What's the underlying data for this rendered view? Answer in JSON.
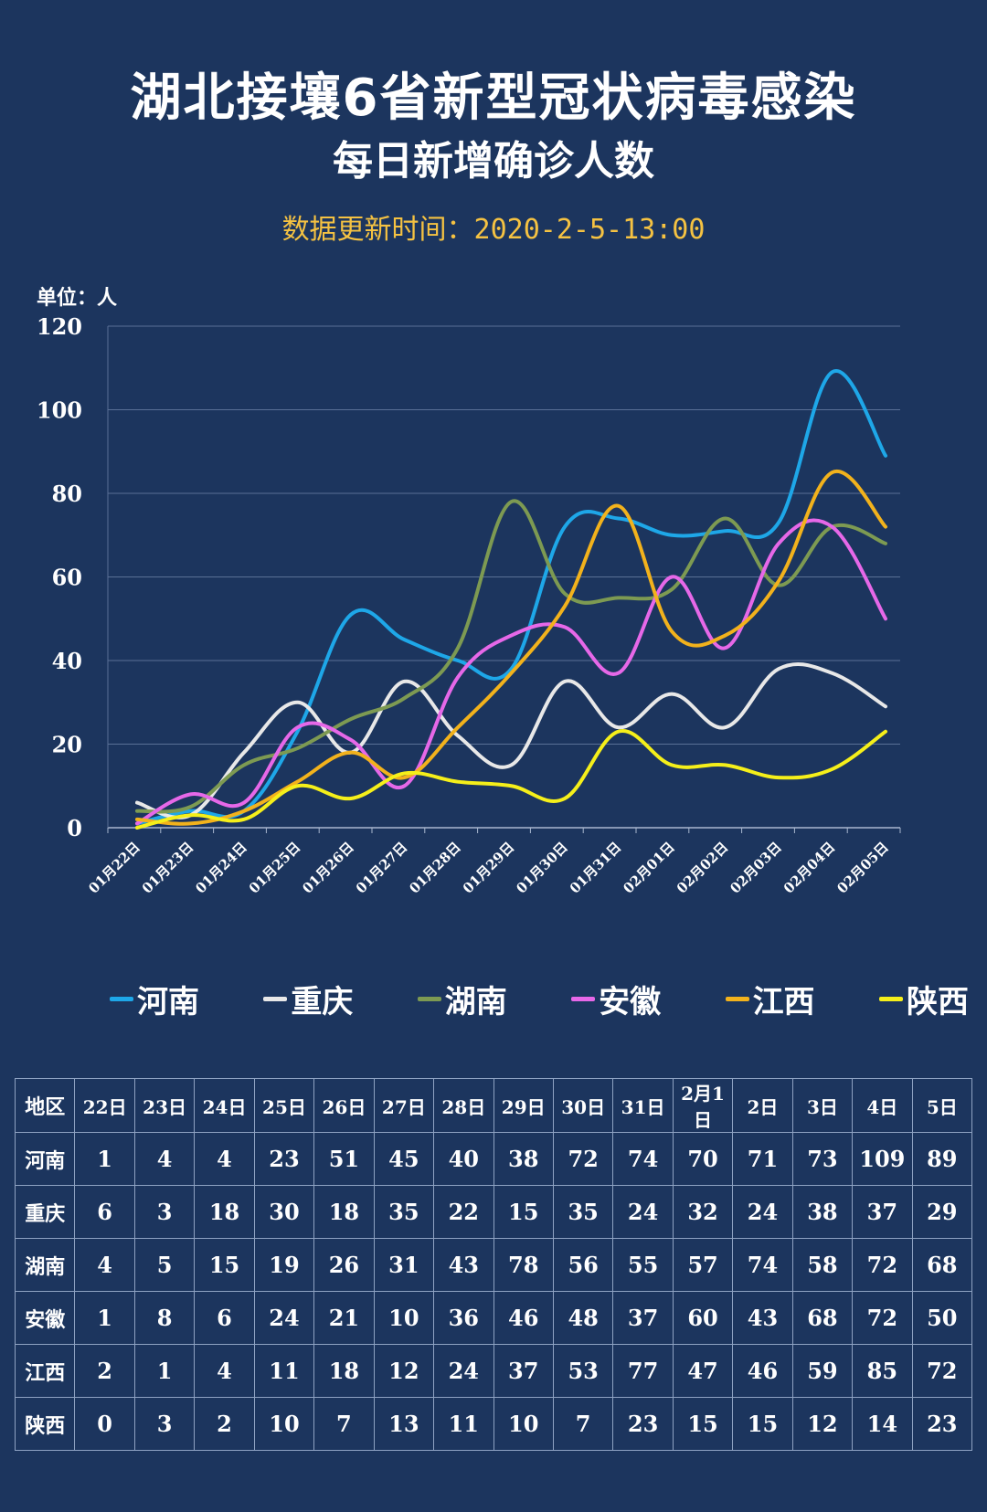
{
  "title": "湖北接壤6省新型冠状病毒感染",
  "subtitle": "每日新增确诊人数",
  "update_time": "数据更新时间：2020-2-5-13:00",
  "unit_label": "单位：人",
  "chart_data": {
    "type": "line",
    "title": "湖北接壤6省新型冠状病毒感染 每日新增确诊人数",
    "ylabel": "单位：人",
    "ylim": [
      0,
      120
    ],
    "yticks": [
      0,
      20,
      40,
      60,
      80,
      100,
      120
    ],
    "grid": true,
    "legend_position": "bottom",
    "categories": [
      "01月22日",
      "01月23日",
      "01月24日",
      "01月25日",
      "01月26日",
      "01月27日",
      "01月28日",
      "01月29日",
      "01月30日",
      "01月31日",
      "02月01日",
      "02月02日",
      "02月03日",
      "02月04日",
      "02月05日"
    ],
    "series": [
      {
        "name": "河南",
        "color": "#1ea7e8",
        "values": [
          1,
          4,
          4,
          23,
          51,
          45,
          40,
          38,
          72,
          74,
          70,
          71,
          73,
          109,
          89
        ]
      },
      {
        "name": "重庆",
        "color": "#e8e8e8",
        "values": [
          6,
          3,
          18,
          30,
          18,
          35,
          22,
          15,
          35,
          24,
          32,
          24,
          38,
          37,
          29
        ]
      },
      {
        "name": "湖南",
        "color": "#7d9a52",
        "values": [
          4,
          5,
          15,
          19,
          26,
          31,
          43,
          78,
          56,
          55,
          57,
          74,
          58,
          72,
          68
        ]
      },
      {
        "name": "安徽",
        "color": "#e668e8",
        "values": [
          1,
          8,
          6,
          24,
          21,
          10,
          36,
          46,
          48,
          37,
          60,
          43,
          68,
          72,
          50
        ]
      },
      {
        "name": "江西",
        "color": "#f2b21c",
        "values": [
          2,
          1,
          4,
          11,
          18,
          12,
          24,
          37,
          53,
          77,
          47,
          46,
          59,
          85,
          72
        ]
      },
      {
        "name": "陕西",
        "color": "#f5ef1a",
        "values": [
          0,
          3,
          2,
          10,
          7,
          13,
          11,
          10,
          7,
          23,
          15,
          15,
          12,
          14,
          23
        ]
      }
    ]
  },
  "table": {
    "header": [
      "地区",
      "22日",
      "23日",
      "24日",
      "25日",
      "26日",
      "27日",
      "28日",
      "29日",
      "30日",
      "31日",
      "2月1日",
      "2日",
      "3日",
      "4日",
      "5日"
    ],
    "rows": [
      [
        "河南",
        "1",
        "4",
        "4",
        "23",
        "51",
        "45",
        "40",
        "38",
        "72",
        "74",
        "70",
        "71",
        "73",
        "109",
        "89"
      ],
      [
        "重庆",
        "6",
        "3",
        "18",
        "30",
        "18",
        "35",
        "22",
        "15",
        "35",
        "24",
        "32",
        "24",
        "38",
        "37",
        "29"
      ],
      [
        "湖南",
        "4",
        "5",
        "15",
        "19",
        "26",
        "31",
        "43",
        "78",
        "56",
        "55",
        "57",
        "74",
        "58",
        "72",
        "68"
      ],
      [
        "安徽",
        "1",
        "8",
        "6",
        "24",
        "21",
        "10",
        "36",
        "46",
        "48",
        "37",
        "60",
        "43",
        "68",
        "72",
        "50"
      ],
      [
        "江西",
        "2",
        "1",
        "4",
        "11",
        "18",
        "12",
        "24",
        "37",
        "53",
        "77",
        "47",
        "46",
        "59",
        "85",
        "72"
      ],
      [
        "陕西",
        "0",
        "3",
        "2",
        "10",
        "7",
        "13",
        "11",
        "10",
        "7",
        "23",
        "15",
        "15",
        "12",
        "14",
        "23"
      ]
    ]
  }
}
